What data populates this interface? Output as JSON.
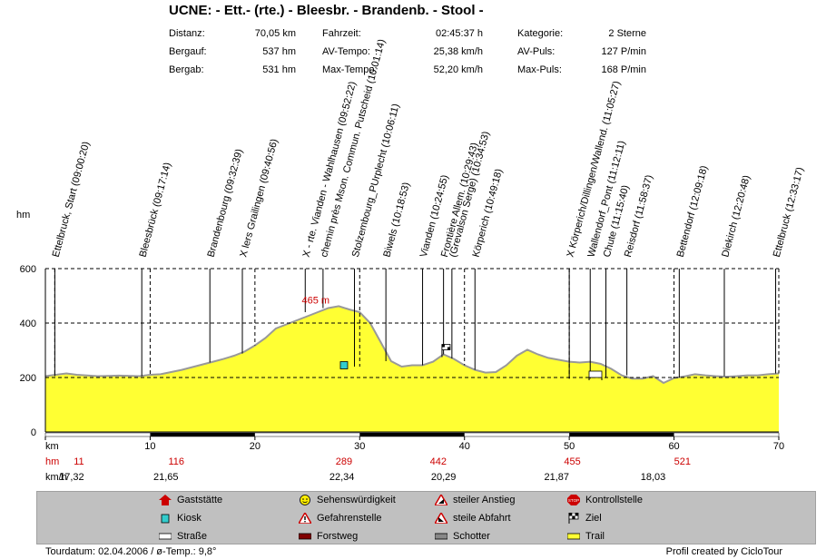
{
  "title": "UCNE: - Ett.- (rte.) - Bleesbr. - Brandenb. - Stool -",
  "stats": [
    {
      "label": "Distanz:",
      "value": "70,05 km"
    },
    {
      "label": "Bergauf:",
      "value": "537 hm"
    },
    {
      "label": "Bergab:",
      "value": "531 hm"
    },
    {
      "label": "Fahrzeit:",
      "value": "02:45:37 h"
    },
    {
      "label": "AV-Tempo:",
      "value": "25,38 km/h"
    },
    {
      "label": "Max-Tempo:",
      "value": "52,20 km/h"
    },
    {
      "label": "Kategorie:",
      "value": "2 Sterne"
    },
    {
      "label": "AV-Puls:",
      "value": "127 P/min"
    },
    {
      "label": "Max-Puls:",
      "value": "168 P/min"
    }
  ],
  "axis": {
    "y_unit": "hm",
    "x_unit": "km",
    "hm_row_label": "hm",
    "kmh_row_label": "km/h"
  },
  "chart_data": {
    "type": "area",
    "xlabel": "km",
    "ylabel": "hm",
    "xlim": [
      0,
      70
    ],
    "ylim": [
      0,
      600
    ],
    "x_ticks": [
      0,
      10,
      20,
      30,
      40,
      50,
      60,
      70
    ],
    "x_tick_labels": [
      "",
      "10",
      "20",
      "30",
      "40",
      "50",
      "60",
      "70"
    ],
    "y_ticks": [
      0,
      200,
      400,
      600
    ],
    "y_tick_labels": [
      "0",
      "200",
      "400",
      "600"
    ],
    "max_label": {
      "x": 25.8,
      "y": 465,
      "text": "465 m"
    },
    "profile": [
      [
        0,
        205
      ],
      [
        1,
        210
      ],
      [
        2,
        215
      ],
      [
        3,
        210
      ],
      [
        5,
        205
      ],
      [
        7,
        207
      ],
      [
        9,
        205
      ],
      [
        10,
        210
      ],
      [
        11,
        212
      ],
      [
        12,
        220
      ],
      [
        13,
        228
      ],
      [
        14,
        238
      ],
      [
        15,
        248
      ],
      [
        16,
        258
      ],
      [
        17,
        268
      ],
      [
        18,
        280
      ],
      [
        19,
        295
      ],
      [
        20,
        318
      ],
      [
        21,
        345
      ],
      [
        22,
        380
      ],
      [
        23,
        395
      ],
      [
        24,
        410
      ],
      [
        25,
        425
      ],
      [
        26,
        440
      ],
      [
        27,
        455
      ],
      [
        28,
        462
      ],
      [
        29,
        450
      ],
      [
        30,
        440
      ],
      [
        31,
        400
      ],
      [
        32,
        330
      ],
      [
        33,
        260
      ],
      [
        34,
        240
      ],
      [
        35,
        245
      ],
      [
        36,
        245
      ],
      [
        37,
        258
      ],
      [
        38,
        285
      ],
      [
        39,
        268
      ],
      [
        40,
        245
      ],
      [
        41,
        228
      ],
      [
        42,
        218
      ],
      [
        43,
        220
      ],
      [
        44,
        245
      ],
      [
        45,
        280
      ],
      [
        46,
        302
      ],
      [
        47,
        285
      ],
      [
        48,
        272
      ],
      [
        49,
        265
      ],
      [
        50,
        258
      ],
      [
        51,
        255
      ],
      [
        52,
        258
      ],
      [
        53,
        250
      ],
      [
        54,
        232
      ],
      [
        55,
        208
      ],
      [
        56,
        196
      ],
      [
        57,
        196
      ],
      [
        58,
        205
      ],
      [
        59,
        180
      ],
      [
        60,
        198
      ],
      [
        61,
        204
      ],
      [
        62,
        212
      ],
      [
        63,
        208
      ],
      [
        64,
        205
      ],
      [
        65,
        203
      ],
      [
        66,
        205
      ],
      [
        67,
        208
      ],
      [
        68,
        208
      ],
      [
        69,
        212
      ],
      [
        70,
        215
      ]
    ],
    "intervals": [
      {
        "x": 0.9,
        "y": 205
      },
      {
        "x": 10,
        "y": 210
      },
      {
        "x": 20,
        "y": 318
      },
      {
        "x": 30,
        "y": 240
      },
      {
        "x": 40,
        "y": 245
      },
      {
        "x": 50,
        "y": 196
      },
      {
        "x": 60,
        "y": 198
      },
      {
        "x": 70,
        "y": 215
      }
    ],
    "waypoints": [
      {
        "x": 0.9,
        "y": 205,
        "label": "Ettelbruck, Start (09:00:20)"
      },
      {
        "x": 9.2,
        "y": 205,
        "label": "Bleesbrück (09:17:14)"
      },
      {
        "x": 15.7,
        "y": 255,
        "label": "Brandenbourg (09:32:39)"
      },
      {
        "x": 18.8,
        "y": 288,
        "label": "X lers Grailingen (09:40:56)"
      },
      {
        "x": 24.8,
        "y": 440,
        "label": "X - rte. Vianden - Wahlhausen (09:52:22)"
      },
      {
        "x": 26.5,
        "y": 455,
        "label": "chemin près Mson. Commun. Putscheid (10:01:14)"
      },
      {
        "x": 29.5,
        "y": 240,
        "label": "Stolzembourg_PUrplecht (10:06:11)"
      },
      {
        "x": 32.5,
        "y": 260,
        "label": "Biwels (10:18:53)"
      },
      {
        "x": 36.0,
        "y": 245,
        "label": "Vianden (10:24:55)"
      },
      {
        "x": 38.0,
        "y": 285,
        "label": "Frontière Allem. (10:29:43)"
      },
      {
        "x": 38.8,
        "y": 270,
        "label": "(Grevalson Serge) (10:34:53)"
      },
      {
        "x": 41.0,
        "y": 228,
        "label": "Körperich (10:49:18)"
      },
      {
        "x": 50.0,
        "y": 196,
        "label": "X Körperich/Dillingen/Wallend. (11:05:27)"
      },
      {
        "x": 52.0,
        "y": 196,
        "label": "Wallendorf_Pont (11:12:11)"
      },
      {
        "x": 53.5,
        "y": 198,
        "label": "Chute (11:15:40)"
      },
      {
        "x": 55.5,
        "y": 208,
        "label": "Reisdorf (11:58:37)"
      },
      {
        "x": 60.5,
        "y": 200,
        "label": "Bettendorf (12:09:18)"
      },
      {
        "x": 64.8,
        "y": 205,
        "label": "Diekirch (12:20:48)"
      },
      {
        "x": 69.7,
        "y": 215,
        "label": "Ettelbruck (12:33:17)"
      }
    ],
    "hm_row": [
      {
        "x": 3.2,
        "value": "11"
      },
      {
        "x": 12.5,
        "value": "116"
      },
      {
        "x": 28.5,
        "value": "289"
      },
      {
        "x": 37.5,
        "value": "442"
      },
      {
        "x": 50.3,
        "value": "455"
      },
      {
        "x": 60.8,
        "value": "521"
      }
    ],
    "kmh_row": [
      {
        "x": 2.5,
        "value": "17,32"
      },
      {
        "x": 11.5,
        "value": "21,65"
      },
      {
        "x": 28.3,
        "value": "22,34"
      },
      {
        "x": 38.0,
        "value": "20,29"
      },
      {
        "x": 48.8,
        "value": "21,87"
      },
      {
        "x": 58.0,
        "value": "18,03"
      }
    ],
    "surface_bar_segments": [
      [
        10,
        20
      ],
      [
        30,
        40
      ],
      [
        50,
        60
      ]
    ],
    "markers": [
      {
        "x": 28.5,
        "y": 245,
        "icon": "kiosk-icon"
      },
      {
        "x": 38.2,
        "y": 295,
        "icon": "finish-flag-icon"
      },
      {
        "x": 52.5,
        "y": 210,
        "icon": "bed-icon"
      }
    ],
    "colors": {
      "fill": "#ffff33",
      "profile_line": "#999999",
      "max_label": "#cc0000",
      "hm_values": "#cc0000"
    }
  },
  "legend": [
    {
      "icon": "gaststaette-icon",
      "label": "Gaststätte"
    },
    {
      "icon": "sehenswuerdigkeit-icon",
      "label": "Sehenswürdigkeit"
    },
    {
      "icon": "steiler-anstieg-icon",
      "label": "steiler Anstieg"
    },
    {
      "icon": "kontrollstelle-icon",
      "label": "Kontrollstelle"
    },
    {
      "icon": "kiosk-icon",
      "label": "Kiosk"
    },
    {
      "icon": "gefahrenstelle-icon",
      "label": "Gefahrenstelle"
    },
    {
      "icon": "steile-abfahrt-icon",
      "label": "steile Abfahrt"
    },
    {
      "icon": "ziel-icon",
      "label": "Ziel"
    },
    {
      "icon": "strasse-icon",
      "label": "Straße"
    },
    {
      "icon": "forstweg-icon",
      "label": "Forstweg"
    },
    {
      "icon": "schotter-icon",
      "label": "Schotter"
    },
    {
      "icon": "trail-icon",
      "label": "Trail"
    }
  ],
  "footer": {
    "left": "Tourdatum: 02.04.2006  /  ø-Temp.: 9,8°",
    "right": "Profil created by CicloTour"
  }
}
